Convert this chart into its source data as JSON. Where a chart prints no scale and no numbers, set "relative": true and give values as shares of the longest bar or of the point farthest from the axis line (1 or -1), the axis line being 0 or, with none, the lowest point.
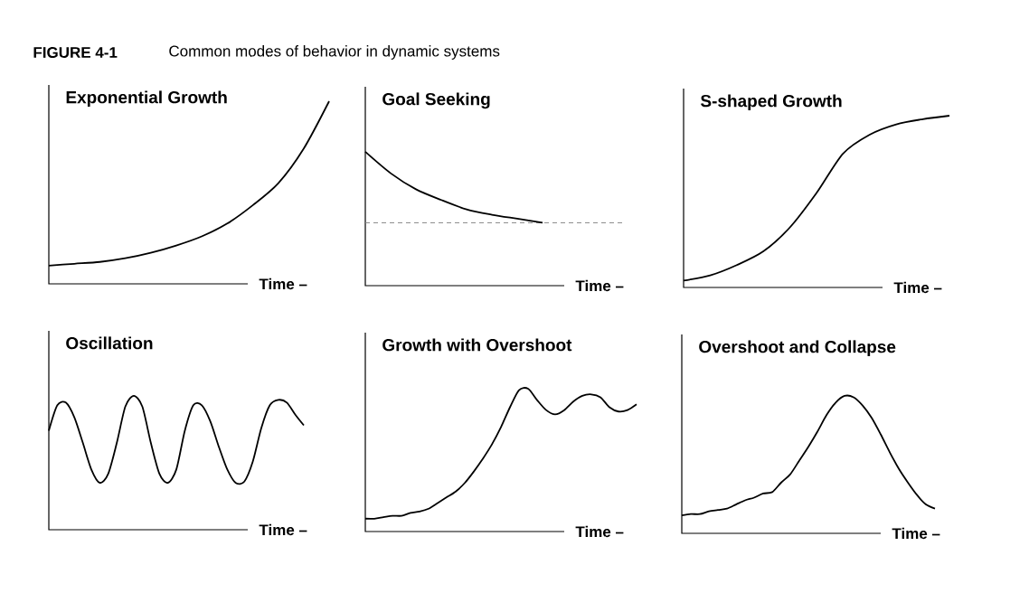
{
  "chart_data": [
    {
      "type": "line",
      "title": "Exponential Growth",
      "xlabel": "Time –",
      "relative": true,
      "color": "#000000",
      "annotations": [
        "FIGURE 4-1",
        "Common modes of behavior in dynamic systems"
      ],
      "categories": [
        null,
        null,
        null,
        null,
        null,
        null,
        null,
        null,
        null,
        null,
        null,
        null
      ],
      "values": [
        0.1,
        0.11,
        0.12,
        0.14,
        0.17,
        0.21,
        0.26,
        0.33,
        0.43,
        0.55,
        0.74,
        1
      ]
    },
    {
      "type": "line",
      "title": "Goal Seeking",
      "xlabel": "Time –",
      "relative": true,
      "color": "#000000",
      "categories": [
        null,
        null,
        null,
        null,
        null,
        null,
        null,
        null
      ],
      "values": [
        1,
        0.84,
        0.72,
        0.64,
        0.57,
        0.53,
        0.5,
        0.47
      ],
      "ref_lines": [
        {
          "axis": "y",
          "value": 0.47,
          "color": "#888888",
          "line_style": "dashed"
        }
      ]
    },
    {
      "type": "line",
      "title": "S-shaped Growth",
      "xlabel": "Time –",
      "relative": true,
      "color": "#000000",
      "categories": [
        null,
        null,
        null,
        null,
        null,
        null,
        null,
        null,
        null,
        null,
        null
      ],
      "values": [
        0.04,
        0.07,
        0.13,
        0.21,
        0.35,
        0.55,
        0.78,
        0.89,
        0.95,
        0.98,
        1
      ]
    },
    {
      "type": "line",
      "title": "Oscillation",
      "xlabel": "Time –",
      "relative": true,
      "color": "#000000",
      "categories": [
        null,
        null,
        null,
        null,
        null,
        null,
        null,
        null,
        null,
        null,
        null,
        null,
        null,
        null,
        null,
        null,
        null,
        null,
        null,
        null,
        null,
        null,
        null,
        null,
        null,
        null,
        null,
        null,
        null,
        null,
        null
      ],
      "values": [
        0.74,
        0.93,
        0.95,
        0.84,
        0.65,
        0.45,
        0.35,
        0.42,
        0.65,
        0.92,
        1,
        0.92,
        0.65,
        0.42,
        0.35,
        0.45,
        0.74,
        0.93,
        0.93,
        0.81,
        0.62,
        0.45,
        0.35,
        0.36,
        0.51,
        0.76,
        0.93,
        0.97,
        0.95,
        0.86,
        0.78
      ]
    },
    {
      "type": "line",
      "title": "Growth with Overshoot",
      "xlabel": "Time –",
      "relative": true,
      "color": "#000000",
      "categories": [
        null,
        null,
        null,
        null,
        null,
        null,
        null,
        null,
        null,
        null,
        null,
        null,
        null,
        null,
        null,
        null,
        null,
        null,
        null,
        null,
        null,
        null,
        null,
        null,
        null,
        null,
        null,
        null,
        null,
        null,
        null
      ],
      "values": [
        0.09,
        0.09,
        0.1,
        0.11,
        0.11,
        0.13,
        0.14,
        0.16,
        0.2,
        0.24,
        0.28,
        0.34,
        0.42,
        0.51,
        0.61,
        0.73,
        0.87,
        0.99,
        1,
        0.92,
        0.85,
        0.82,
        0.85,
        0.91,
        0.95,
        0.96,
        0.94,
        0.87,
        0.84,
        0.85,
        0.89
      ]
    },
    {
      "type": "line",
      "title": "Overshoot and Collapse",
      "xlabel": "Time –",
      "relative": true,
      "color": "#000000",
      "categories": [
        null,
        null,
        null,
        null,
        null,
        null,
        null,
        null,
        null,
        null,
        null,
        null,
        null,
        null,
        null,
        null,
        null,
        null,
        null,
        null,
        null,
        null,
        null,
        null,
        null,
        null,
        null,
        null,
        null
      ],
      "values": [
        0.13,
        0.14,
        0.14,
        0.16,
        0.17,
        0.18,
        0.21,
        0.24,
        0.26,
        0.29,
        0.3,
        0.37,
        0.43,
        0.53,
        0.63,
        0.74,
        0.86,
        0.95,
        1,
        0.99,
        0.93,
        0.84,
        0.72,
        0.59,
        0.47,
        0.37,
        0.28,
        0.21,
        0.18
      ]
    }
  ]
}
